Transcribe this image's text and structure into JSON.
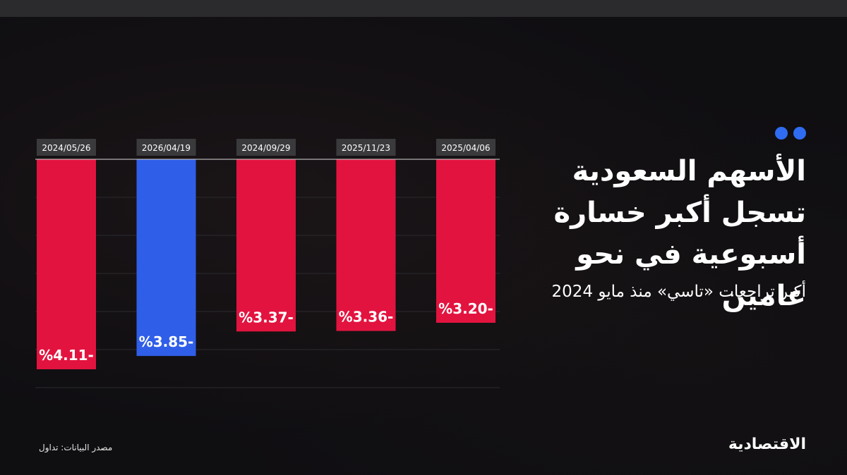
{
  "title": "الأسهم السعودية تسجل أكبر خسارة أسبوعية في نحو عامين",
  "subtitle": "أكبر تراجعات «تاسي» منذ مايو 2024",
  "source": "مصدر البيانات: تداول",
  "logo": "الاقتصادية",
  "colors": {
    "negative": "#e3133f",
    "highlight": "#2f5ee8",
    "accent_dots": "#2f6cf2",
    "background": "#0f0e11"
  },
  "chart_data": {
    "type": "bar",
    "categories": [
      "2024/05/26",
      "2026/04/19",
      "2024/09/29",
      "2025/11/23",
      "2025/04/06"
    ],
    "values": [
      -4.11,
      -3.85,
      -3.37,
      -3.36,
      -3.2
    ],
    "labels": [
      "%4.11-",
      "%3.85-",
      "%3.37-",
      "%3.36-",
      "%3.20-"
    ],
    "highlight_index": 1,
    "ylim": [
      -4.5,
      0
    ],
    "grid": true
  }
}
